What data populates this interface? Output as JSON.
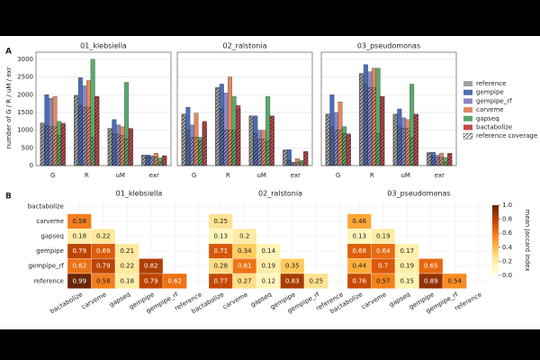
{
  "chart_data": [
    {
      "type": "grouped-bar",
      "panel_label": "A",
      "ylabel": "number of G / R / uM / exr",
      "ylim": [
        0,
        3200
      ],
      "yticks": [
        0,
        500,
        1000,
        1500,
        2000,
        2500,
        3000
      ],
      "grid": true,
      "categories": [
        "G",
        "R",
        "uM",
        "exr"
      ],
      "panels": [
        {
          "title": "01_klebsiella"
        },
        {
          "title": "02_ralstonia"
        },
        {
          "title": "03_pseudomonas"
        }
      ],
      "coverage_name": "reference coverage",
      "series": [
        {
          "name": "reference",
          "color": "#a3a3a3",
          "values": [
            [
              1200,
              1980,
              1050,
              300
            ],
            [
              1450,
              2200,
              1400,
              450
            ],
            [
              1450,
              2600,
              1450,
              380
            ]
          ],
          "coverage": [
            [
              1200,
              1980,
              1050,
              280
            ],
            [
              1450,
              2200,
              1400,
              420
            ],
            [
              1450,
              2600,
              1450,
              350
            ]
          ]
        },
        {
          "name": "gempipe",
          "color": "#4a6db3",
          "values": [
            [
              2000,
              2480,
              1300,
              300
            ],
            [
              1650,
              2300,
              1400,
              450
            ],
            [
              2000,
              2850,
              1600,
              380
            ]
          ],
          "coverage": [
            [
              1130,
              1700,
              900,
              250
            ],
            [
              1000,
              1600,
              900,
              150
            ],
            [
              1100,
              2300,
              1100,
              250
            ]
          ]
        },
        {
          "name": "gempipe_rf",
          "color": "#8b86c2",
          "values": [
            [
              1900,
              2250,
              1150,
              280
            ],
            [
              1150,
              2050,
              1000,
              100
            ],
            [
              1500,
              2650,
              1350,
              300
            ]
          ],
          "coverage": [
            [
              1100,
              1650,
              880,
              230
            ],
            [
              800,
              1000,
              750,
              80
            ],
            [
              1000,
              2200,
              1050,
              230
            ]
          ]
        },
        {
          "name": "carveme",
          "color": "#e0895c",
          "values": [
            [
              1950,
              2400,
              1100,
              350
            ],
            [
              1480,
              2500,
              1000,
              200
            ],
            [
              1800,
              2750,
              1300,
              350
            ]
          ],
          "coverage": [
            [
              1100,
              1650,
              850,
              240
            ],
            [
              800,
              1000,
              750,
              100
            ],
            [
              1000,
              2200,
              1050,
              230
            ]
          ]
        },
        {
          "name": "gapseq",
          "color": "#5aa96c",
          "values": [
            [
              1250,
              3000,
              2350,
              220
            ],
            [
              800,
              1950,
              1950,
              150
            ],
            [
              1100,
              2750,
              2300,
              230
            ]
          ],
          "coverage": [
            [
              850,
              800,
              750,
              120
            ],
            [
              700,
              1000,
              700,
              80
            ],
            [
              900,
              900,
              800,
              100
            ]
          ]
        },
        {
          "name": "bactabolize",
          "color": "#c9474d",
          "values": [
            [
              1200,
              1950,
              1050,
              280
            ],
            [
              1250,
              1700,
              1400,
              400
            ],
            [
              900,
              1950,
              1450,
              350
            ]
          ],
          "coverage": [
            [
              1150,
              1950,
              1050,
              270
            ],
            [
              1200,
              1600,
              1400,
              380
            ],
            [
              850,
              1950,
              1450,
              330
            ]
          ]
        }
      ]
    },
    {
      "type": "heatmap",
      "panel_label": "B",
      "colormap": "YlOrBr",
      "rows": [
        "bactabolize",
        "carveme",
        "gapseq",
        "gempipe",
        "gempipe_rf",
        "reference"
      ],
      "columns": [
        "bactabolize",
        "carveme",
        "gapseq",
        "gempipe",
        "gempipe_rf",
        "reference"
      ],
      "panels": [
        {
          "title": "01_klebsiella",
          "values": [
            [],
            [
              0.58
            ],
            [
              0.18,
              0.22
            ],
            [
              0.79,
              0.69,
              0.21
            ],
            [
              0.62,
              0.79,
              0.22,
              0.82
            ],
            [
              0.99,
              0.58,
              0.18,
              0.79,
              0.62
            ]
          ]
        },
        {
          "title": "02_ralstonia",
          "values": [
            [],
            [
              0.25
            ],
            [
              0.13,
              0.2
            ],
            [
              0.71,
              0.34,
              0.14
            ],
            [
              0.28,
              0.61,
              0.19,
              0.35
            ],
            [
              0.77,
              0.27,
              0.12,
              0.83,
              0.25
            ]
          ]
        },
        {
          "title": "03_pseudomonas",
          "values": [
            [],
            [
              0.46
            ],
            [
              0.13,
              0.19
            ],
            [
              0.68,
              0.64,
              0.17
            ],
            [
              0.44,
              0.7,
              0.19,
              0.65
            ],
            [
              0.76,
              0.57,
              0.15,
              0.89,
              0.54
            ]
          ]
        }
      ],
      "colorbar": {
        "label": "mean Jaccard index",
        "lim": [
          0,
          1
        ],
        "ticks": [
          {
            "value": 0,
            "label": "0.0"
          },
          {
            "value": 0.2,
            "label": "0.2"
          },
          {
            "value": 0.4,
            "label": "0.4"
          },
          {
            "value": 0.6,
            "label": "0.6"
          },
          {
            "value": 0.8,
            "label": "0.8"
          },
          {
            "value": 1,
            "label": "1.0"
          }
        ]
      }
    }
  ]
}
